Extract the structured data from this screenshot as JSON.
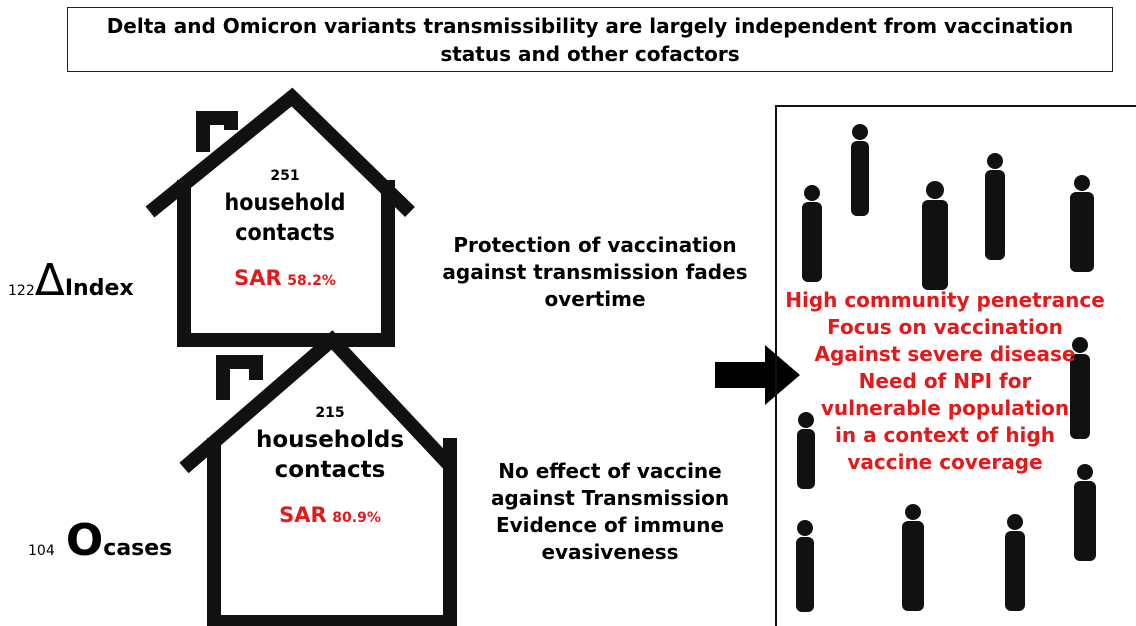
{
  "title": "Delta and Omicron variants transmissibility  are largely  independent from  vaccination status  and other cofactors",
  "delta": {
    "count": 122,
    "symbol": "Δ",
    "label": "Index",
    "contacts": 251,
    "contacts_label": "household contacts",
    "sar_label": "SAR",
    "sar": "58.2%",
    "note": "Protection  of vaccination against transmission fades overtime"
  },
  "omicron": {
    "count": 104,
    "symbol": "O",
    "label": "cases",
    "contacts": 215,
    "contacts_label": "households contacts",
    "sar_label": "SAR",
    "sar": "80.9%",
    "note": "No effect of vaccine against  Transmission Evidence of immune evasiveness"
  },
  "conclusion": [
    "High community penetrance",
    "Focus on vaccination",
    "Against severe disease",
    "Need of NPI for vulnerable population in a context  of high vaccine coverage"
  ]
}
